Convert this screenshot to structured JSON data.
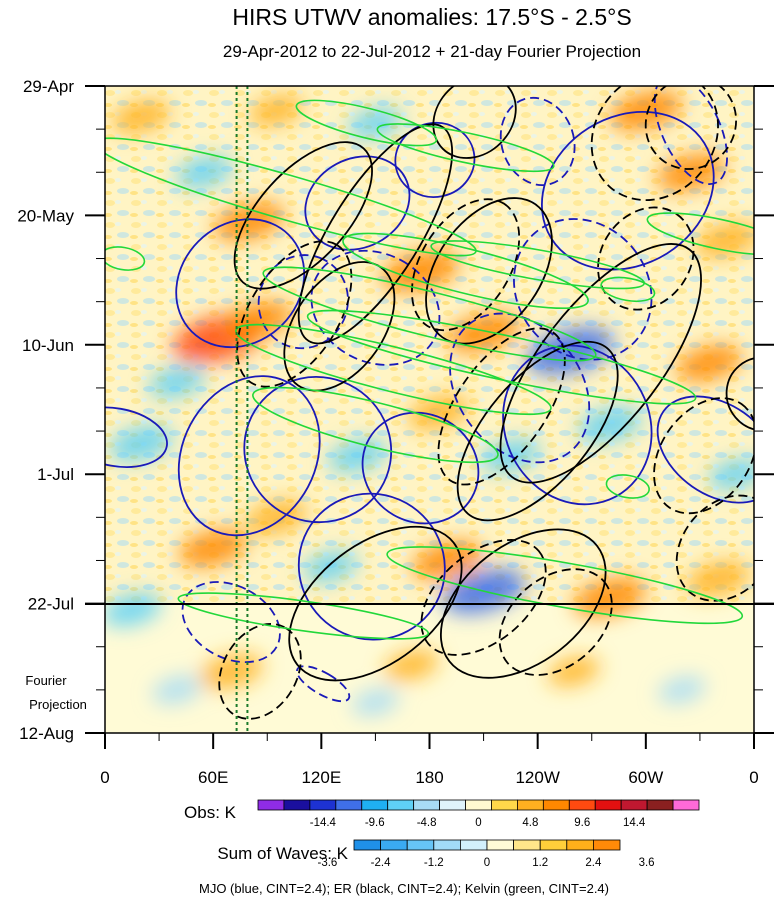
{
  "chart_data": {
    "type": "heatmap",
    "title": "HIRS UTWV anomalies: 17.5°S - 2.5°S",
    "subtitle": "29-Apr-2012 to 22-Jul-2012 + 21-day Fourier Projection",
    "y_ticks": [
      "29-Apr",
      "20-May",
      "10-Jun",
      "1-Jul",
      "22-Jul",
      "12-Aug"
    ],
    "y_days": [
      0,
      21,
      42,
      63,
      84,
      105
    ],
    "projection_label": [
      "Fourier",
      "Projection"
    ],
    "x_ticks": [
      "0",
      "60E",
      "120E",
      "180",
      "120W",
      "60W",
      "0"
    ],
    "x_lons": [
      0,
      60,
      120,
      180,
      240,
      300,
      360
    ],
    "x_range": [
      0,
      360
    ],
    "y_range_days": [
      0,
      105
    ],
    "obs_end_day": 84,
    "reference_lines_lon": [
      73,
      79
    ],
    "obs_colorbar": {
      "label": "Obs: K",
      "tick_labels": [
        "-14.4",
        "-9.6",
        "-4.8",
        "0",
        "4.8",
        "9.6",
        "14.4"
      ],
      "colors": [
        "#8f2ce6",
        "#1a0f9e",
        "#1d32d2",
        "#3f6fe8",
        "#1fb0f2",
        "#5fd0f5",
        "#a8dcf5",
        "#dff4fb",
        "#fffad0",
        "#ffd84a",
        "#ffb020",
        "#ff8800",
        "#ff4a10",
        "#e31010",
        "#c01830",
        "#8a2020",
        "#ff6ad8"
      ]
    },
    "waves_colorbar": {
      "label": "Sum of Waves: K",
      "tick_labels": [
        "-3.6",
        "-2.4",
        "-1.2",
        "0",
        "1.2",
        "2.4",
        "3.6"
      ],
      "colors": [
        "#1f90e8",
        "#3aaaf2",
        "#66c4f6",
        "#a2dcf8",
        "#d2f0fb",
        "#fffbd6",
        "#ffe68a",
        "#ffcf3a",
        "#ffaf1a",
        "#ff8a08"
      ]
    },
    "footer": "MJO (blue, CINT=2.4); ER (black, CINT=2.4); Kelvin (green, CINT=2.4)",
    "series": [
      {
        "name": "MJO",
        "color": "#1a1ab8",
        "contours": [
          {
            "lon": 183,
            "day": 12,
            "rx": 22,
            "ry": 5,
            "angle": 12,
            "sign": 1
          },
          {
            "lon": 240,
            "day": 9,
            "rx": 20,
            "ry": 6,
            "angle": 18,
            "sign": -1
          },
          {
            "lon": 325,
            "day": 7,
            "rx": 16,
            "ry": 8,
            "angle": 25,
            "sign": -1
          },
          {
            "lon": 290,
            "day": 17,
            "rx": 50,
            "ry": 10,
            "angle": 32,
            "sign": 1
          },
          {
            "lon": 140,
            "day": 19,
            "rx": 30,
            "ry": 6,
            "angle": 28,
            "sign": 1
          },
          {
            "lon": 110,
            "day": 35,
            "rx": 26,
            "ry": 6,
            "angle": 70,
            "sign": -1
          },
          {
            "lon": 75,
            "day": 32,
            "rx": 38,
            "ry": 8,
            "angle": 45,
            "sign": 1
          },
          {
            "lon": 150,
            "day": 36,
            "rx": 30,
            "ry": 9,
            "angle": 62,
            "sign": -1
          },
          {
            "lon": 230,
            "day": 49,
            "rx": 34,
            "ry": 11,
            "angle": 38,
            "sign": -1
          },
          {
            "lon": 265,
            "day": 33,
            "rx": 36,
            "ry": 10,
            "angle": 40,
            "sign": -1
          },
          {
            "lon": 262,
            "day": 55,
            "rx": 40,
            "ry": 11,
            "angle": 28,
            "sign": 1
          },
          {
            "lon": 340,
            "day": 59,
            "rx": 25,
            "ry": 9,
            "angle": 55,
            "sign": 1
          },
          {
            "lon": 6,
            "day": 57,
            "rx": 16,
            "ry": 7,
            "angle": 80,
            "sign": 1
          },
          {
            "lon": 80,
            "day": 60,
            "rx": 46,
            "ry": 9,
            "angle": 62,
            "sign": 1
          },
          {
            "lon": 118,
            "day": 59,
            "rx": 40,
            "ry": 10,
            "angle": 58,
            "sign": 1
          },
          {
            "lon": 175,
            "day": 62,
            "rx": 30,
            "ry": 8,
            "angle": 60,
            "sign": 1
          },
          {
            "lon": 148,
            "day": 78,
            "rx": 40,
            "ry": 10,
            "angle": 45,
            "sign": 1
          },
          {
            "lon": 70,
            "day": 87,
            "rx": 20,
            "ry": 7,
            "angle": 62,
            "sign": -1
          },
          {
            "lon": 121,
            "day": 97,
            "rx": 6,
            "ry": 4,
            "angle": 60,
            "sign": -1
          }
        ]
      },
      {
        "name": "ER",
        "color": "#000000",
        "contours": [
          {
            "lon": 205,
            "day": 5,
            "rx": 25,
            "ry": 5,
            "angle": 45,
            "sign": 1
          },
          {
            "lon": 305,
            "day": 8,
            "rx": 38,
            "ry": 8,
            "angle": 50,
            "sign": -1
          },
          {
            "lon": 325,
            "day": 6,
            "rx": 26,
            "ry": 6,
            "angle": 55,
            "sign": -1
          },
          {
            "lon": 110,
            "day": 21,
            "rx": 50,
            "ry": 6,
            "angle": 48,
            "sign": 1
          },
          {
            "lon": 150,
            "day": 24,
            "rx": 70,
            "ry": 6,
            "angle": 58,
            "sign": 1
          },
          {
            "lon": 200,
            "day": 29,
            "rx": 40,
            "ry": 6,
            "angle": 58,
            "sign": -1
          },
          {
            "lon": 213,
            "day": 30,
            "rx": 45,
            "ry": 7,
            "angle": 55,
            "sign": 1
          },
          {
            "lon": 130,
            "day": 39,
            "rx": 40,
            "ry": 6,
            "angle": 55,
            "sign": 1
          },
          {
            "lon": 105,
            "day": 37,
            "rx": 45,
            "ry": 6,
            "angle": 58,
            "sign": -1
          },
          {
            "lon": 300,
            "day": 28,
            "rx": 30,
            "ry": 6,
            "angle": 55,
            "sign": -1
          },
          {
            "lon": 275,
            "day": 45,
            "rx": 80,
            "ry": 8,
            "angle": 52,
            "sign": 1
          },
          {
            "lon": 240,
            "day": 56,
            "rx": 60,
            "ry": 7,
            "angle": 50,
            "sign": 1
          },
          {
            "lon": 220,
            "day": 52,
            "rx": 50,
            "ry": 6,
            "angle": 55,
            "sign": -1
          },
          {
            "lon": 333,
            "day": 60,
            "rx": 35,
            "ry": 6,
            "angle": 55,
            "sign": -1
          },
          {
            "lon": 365,
            "day": 50,
            "rx": 20,
            "ry": 5,
            "angle": 40,
            "sign": 1
          },
          {
            "lon": 150,
            "day": 84,
            "rx": 55,
            "ry": 8,
            "angle": 38,
            "sign": 1
          },
          {
            "lon": 232,
            "day": 84,
            "rx": 52,
            "ry": 8,
            "angle": 38,
            "sign": 1
          },
          {
            "lon": 210,
            "day": 83,
            "rx": 40,
            "ry": 6,
            "angle": 40,
            "sign": -1
          },
          {
            "lon": 250,
            "day": 87,
            "rx": 35,
            "ry": 6,
            "angle": 40,
            "sign": -1
          },
          {
            "lon": 345,
            "day": 75,
            "rx": 32,
            "ry": 6,
            "angle": 50,
            "sign": -1
          },
          {
            "lon": 86,
            "day": 95,
            "rx": 28,
            "ry": 5,
            "angle": 60,
            "sign": -1
          }
        ]
      },
      {
        "name": "Kelvin",
        "color": "#22d83a",
        "contours": [
          {
            "lon": 200,
            "day": 10,
            "rx": 50,
            "ry": 2,
            "angle": -12,
            "sign": 1
          },
          {
            "lon": 145,
            "day": 6,
            "rx": 40,
            "ry": 2,
            "angle": -14,
            "sign": 1
          },
          {
            "lon": 100,
            "day": 18,
            "rx": 110,
            "ry": 3,
            "angle": -16,
            "sign": 1
          },
          {
            "lon": 340,
            "day": 24,
            "rx": 40,
            "ry": 2,
            "angle": -12,
            "sign": 1
          },
          {
            "lon": 200,
            "day": 30,
            "rx": 70,
            "ry": 3,
            "angle": -14,
            "sign": 1
          },
          {
            "lon": 240,
            "day": 29,
            "rx": 60,
            "ry": 2,
            "angle": -10,
            "sign": 1
          },
          {
            "lon": 180,
            "day": 37,
            "rx": 95,
            "ry": 3,
            "angle": -14,
            "sign": 1
          },
          {
            "lon": 220,
            "day": 44,
            "rx": 110,
            "ry": 3,
            "angle": -12,
            "sign": 1
          },
          {
            "lon": 160,
            "day": 46,
            "rx": 90,
            "ry": 3,
            "angle": -14,
            "sign": 1
          },
          {
            "lon": 150,
            "day": 55,
            "rx": 70,
            "ry": 3,
            "angle": -14,
            "sign": 1
          },
          {
            "lon": 255,
            "day": 81,
            "rx": 100,
            "ry": 3,
            "angle": -10,
            "sign": 1
          },
          {
            "lon": 110,
            "day": 86,
            "rx": 70,
            "ry": 2,
            "angle": -8,
            "sign": 1
          },
          {
            "lon": 10,
            "day": 28,
            "rx": 12,
            "ry": 1.5,
            "angle": -10,
            "sign": 1
          },
          {
            "lon": 290,
            "day": 33,
            "rx": 15,
            "ry": 1.5,
            "angle": -10,
            "sign": 1
          },
          {
            "lon": 290,
            "day": 65,
            "rx": 12,
            "ry": 1.5,
            "angle": -10,
            "sign": 1
          }
        ]
      }
    ],
    "anomaly_blobs": [
      {
        "lon": 20,
        "day": 5,
        "v": 1
      },
      {
        "lon": 95,
        "day": 4,
        "v": 0.8
      },
      {
        "lon": 150,
        "day": 6,
        "v": -0.8
      },
      {
        "lon": 300,
        "day": 4,
        "v": 1.6
      },
      {
        "lon": 325,
        "day": 14,
        "v": 1.4
      },
      {
        "lon": 345,
        "day": 25,
        "v": 1.2
      },
      {
        "lon": 55,
        "day": 14,
        "v": -0.9
      },
      {
        "lon": 80,
        "day": 22,
        "v": 1.5
      },
      {
        "lon": 175,
        "day": 30,
        "v": 1.8
      },
      {
        "lon": 210,
        "day": 40,
        "v": 1.6
      },
      {
        "lon": 63,
        "day": 41,
        "v": 2.4
      },
      {
        "lon": 85,
        "day": 38,
        "v": 1.4
      },
      {
        "lon": 40,
        "day": 48,
        "v": -0.9
      },
      {
        "lon": 258,
        "day": 43,
        "v": -2.2
      },
      {
        "lon": 280,
        "day": 55,
        "v": -1.2
      },
      {
        "lon": 225,
        "day": 60,
        "v": -1.0
      },
      {
        "lon": 185,
        "day": 53,
        "v": 1.1
      },
      {
        "lon": 140,
        "day": 60,
        "v": -1.0
      },
      {
        "lon": 335,
        "day": 45,
        "v": 1.3
      },
      {
        "lon": 350,
        "day": 63,
        "v": -0.8
      },
      {
        "lon": 20,
        "day": 58,
        "v": -1.2
      },
      {
        "lon": 95,
        "day": 70,
        "v": 1.1
      },
      {
        "lon": 60,
        "day": 75,
        "v": 1.4
      },
      {
        "lon": 190,
        "day": 77,
        "v": 1.5
      },
      {
        "lon": 210,
        "day": 82,
        "v": -2.0
      },
      {
        "lon": 280,
        "day": 83,
        "v": 1.6
      },
      {
        "lon": 340,
        "day": 80,
        "v": 1.2
      },
      {
        "lon": 125,
        "day": 78,
        "v": -0.8
      },
      {
        "lon": 15,
        "day": 85,
        "v": -1.0
      },
      {
        "lon": 70,
        "day": 95,
        "v": 1.2
      },
      {
        "lon": 170,
        "day": 94,
        "v": 0.8
      },
      {
        "lon": 40,
        "day": 98,
        "v": -0.6
      },
      {
        "lon": 260,
        "day": 95,
        "v": 0.7
      },
      {
        "lon": 150,
        "day": 100,
        "v": -0.5
      },
      {
        "lon": 320,
        "day": 98,
        "v": -0.5
      }
    ]
  }
}
